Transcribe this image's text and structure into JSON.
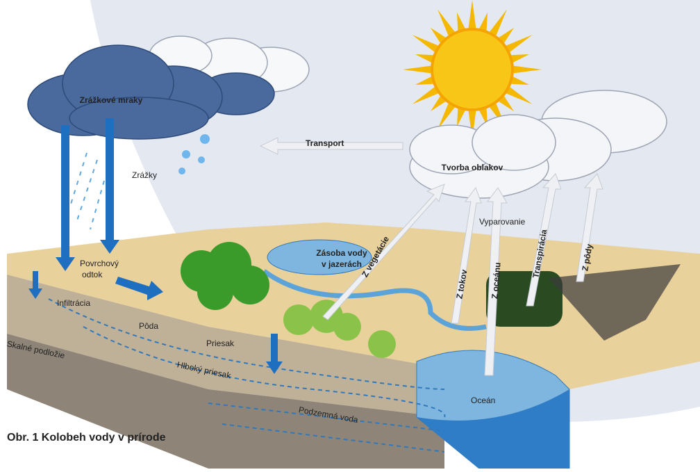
{
  "caption": "Obr. 1 Kolobeh vody v prírode",
  "labels": {
    "precipitation_clouds": "Zrážkové mraky",
    "precipitation": "Zrážky",
    "transport": "Transport",
    "cloud_formation": "Tvorba oblakov",
    "evaporation": "Vyparovanie",
    "from_vegetation": "Z vegetácie",
    "from_streams": "Z tokov",
    "from_ocean": "Z oceánu",
    "transpiration": "Transpirácia",
    "from_soil": "Z pôdy",
    "lake_storage": [
      "Zásoba vody",
      "v jazerách"
    ],
    "surface_runoff": [
      "Povrchový",
      "odtok"
    ],
    "infiltration": "Infiltrácia",
    "soil": "Pôda",
    "seepage": "Priesak",
    "bedrock": "Skalné podložie",
    "deep_seepage": "Hlboký priesak",
    "groundwater": "Podzemná voda",
    "ocean": "Oceán"
  }
}
